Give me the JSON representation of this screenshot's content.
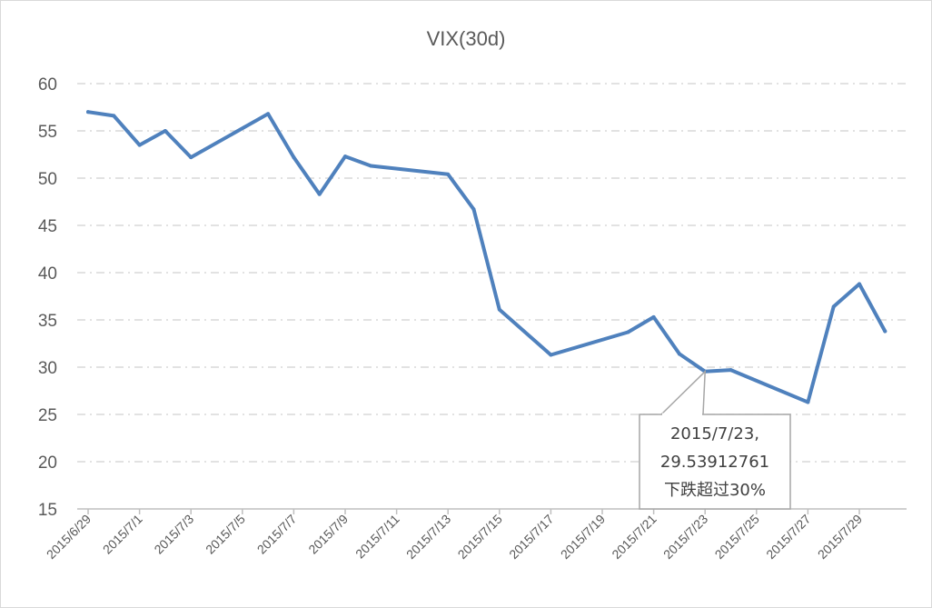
{
  "chart_data": {
    "type": "line",
    "title": "VIX(30d)",
    "xlabel": "",
    "ylabel": "",
    "ylim": [
      15,
      60
    ],
    "yticks": [
      15,
      20,
      25,
      30,
      35,
      40,
      45,
      50,
      55,
      60
    ],
    "xtick_labels": [
      "2015/6/29",
      "2015/7/1",
      "2015/7/3",
      "2015/7/5",
      "2015/7/7",
      "2015/7/9",
      "2015/7/11",
      "2015/7/13",
      "2015/7/15",
      "2015/7/17",
      "2015/7/19",
      "2015/7/21",
      "2015/7/23",
      "2015/7/25",
      "2015/7/27",
      "2015/7/29"
    ],
    "grid": true,
    "legend": "none",
    "series": [
      {
        "color": "#4f81bd",
        "points": [
          {
            "x": "2015/6/29",
            "y": 57.0
          },
          {
            "x": "2015/6/30",
            "y": 56.6
          },
          {
            "x": "2015/7/1",
            "y": 53.5
          },
          {
            "x": "2015/7/2",
            "y": 55.0
          },
          {
            "x": "2015/7/3",
            "y": 52.2
          },
          {
            "x": "2015/7/6",
            "y": 56.8
          },
          {
            "x": "2015/7/7",
            "y": 52.2
          },
          {
            "x": "2015/7/8",
            "y": 48.3
          },
          {
            "x": "2015/7/9",
            "y": 52.3
          },
          {
            "x": "2015/7/10",
            "y": 51.3
          },
          {
            "x": "2015/7/13",
            "y": 50.4
          },
          {
            "x": "2015/7/14",
            "y": 46.7
          },
          {
            "x": "2015/7/15",
            "y": 36.1
          },
          {
            "x": "2015/7/17",
            "y": 31.3
          },
          {
            "x": "2015/7/20",
            "y": 33.7
          },
          {
            "x": "2015/7/21",
            "y": 35.3
          },
          {
            "x": "2015/7/22",
            "y": 31.4
          },
          {
            "x": "2015/7/23",
            "y": 29.53912761
          },
          {
            "x": "2015/7/24",
            "y": 29.7
          },
          {
            "x": "2015/7/27",
            "y": 26.3
          },
          {
            "x": "2015/7/28",
            "y": 36.4
          },
          {
            "x": "2015/7/29",
            "y": 38.8
          },
          {
            "x": "2015/7/30",
            "y": 33.8
          }
        ]
      }
    ],
    "annotation": {
      "x": "2015/7/23",
      "y": 29.53912761,
      "lines": [
        "2015/7/23,",
        "29.53912761",
        "下跌超过30%"
      ]
    }
  }
}
